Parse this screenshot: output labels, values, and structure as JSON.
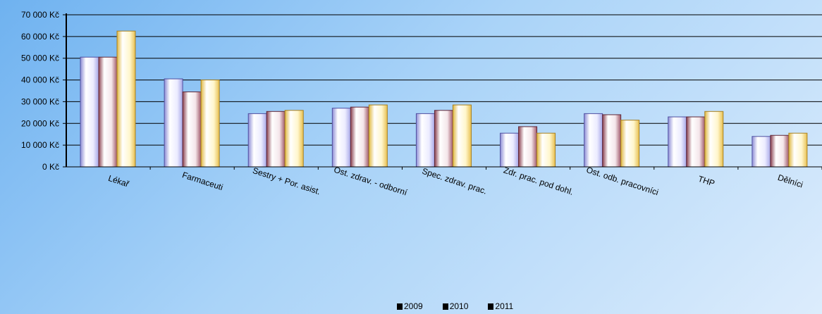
{
  "chart_data": {
    "type": "bar",
    "categories": [
      "Lékař",
      "Farmaceuti",
      "Sestry + Por. asist.",
      "Ost. zdrav. - odborní",
      "Spec. zdrav. prac.",
      "Zdr. prac. pod dohl.",
      "Ost. odb. pracovníci",
      "THP",
      "Dělníci"
    ],
    "series": [
      {
        "name": "2009",
        "values": [
          50500,
          40500,
          24500,
          27000,
          24500,
          15500,
          24500,
          23000,
          14000
        ]
      },
      {
        "name": "2010",
        "values": [
          50500,
          34500,
          25500,
          27500,
          26000,
          18500,
          24000,
          23000,
          14500
        ]
      },
      {
        "name": "2011",
        "values": [
          62500,
          40000,
          26000,
          28500,
          28500,
          15500,
          21500,
          25500,
          15500
        ]
      }
    ],
    "y_ticks": [
      "0 Kč",
      "10 000 Kč",
      "20 000 Kč",
      "30 000 Kč",
      "40 000 Kč",
      "50 000 Kč",
      "60 000 Kč",
      "70 000 Kč"
    ],
    "ylim": [
      0,
      70000
    ],
    "grid": true,
    "legend_position": "bottom",
    "colors": {
      "series_2009": "#e4e4ff",
      "series_2010": "#f2e0e4",
      "series_2011": "#fff2c4",
      "grid": "#000000"
    }
  }
}
